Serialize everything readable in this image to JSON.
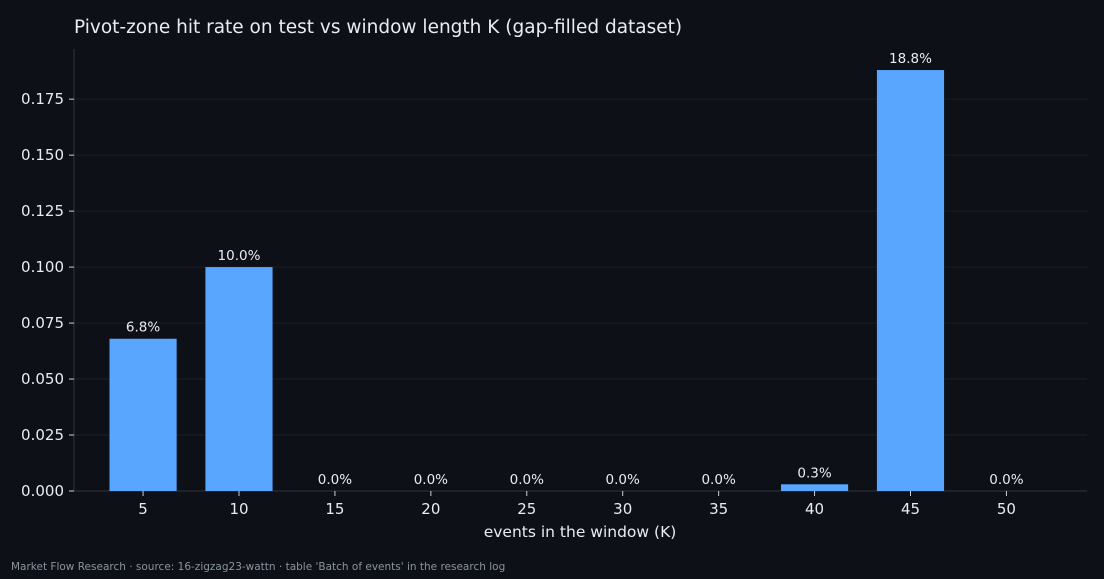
{
  "chart_data": {
    "type": "bar",
    "title": "Pivot-zone hit rate on test vs window length K (gap-filled dataset)",
    "xlabel": "events in the window (K)",
    "ylabel": "",
    "categories": [
      "5",
      "10",
      "15",
      "20",
      "25",
      "30",
      "35",
      "40",
      "45",
      "50"
    ],
    "x": [
      5,
      10,
      15,
      20,
      25,
      30,
      35,
      40,
      45,
      50
    ],
    "values": [
      0.068,
      0.1,
      0.0,
      0.0,
      0.0,
      0.0,
      0.0,
      0.003,
      0.188,
      0.0
    ],
    "data_labels": [
      "6.8%",
      "10.0%",
      "0.0%",
      "0.0%",
      "0.0%",
      "0.0%",
      "0.0%",
      "0.3%",
      "18.8%",
      "0.0%"
    ],
    "y_ticks": [
      0.0,
      0.025,
      0.05,
      0.075,
      0.1,
      0.125,
      0.15,
      0.175
    ],
    "y_tick_labels": [
      "0.000",
      "0.025",
      "0.050",
      "0.075",
      "0.100",
      "0.125",
      "0.150",
      "0.175"
    ],
    "ylim": [
      0,
      0.1974
    ],
    "xlim": [
      1.4,
      54.2
    ],
    "grid": "horizontal, faint",
    "legend": "none",
    "bar_color": "#58a6ff",
    "background_color": "#0d1017",
    "text_color": "#e6edf3"
  },
  "footer": {
    "caption": "Market Flow Research · source: 16-zigzag23-wattn · table 'Batch of events' in the research log"
  }
}
